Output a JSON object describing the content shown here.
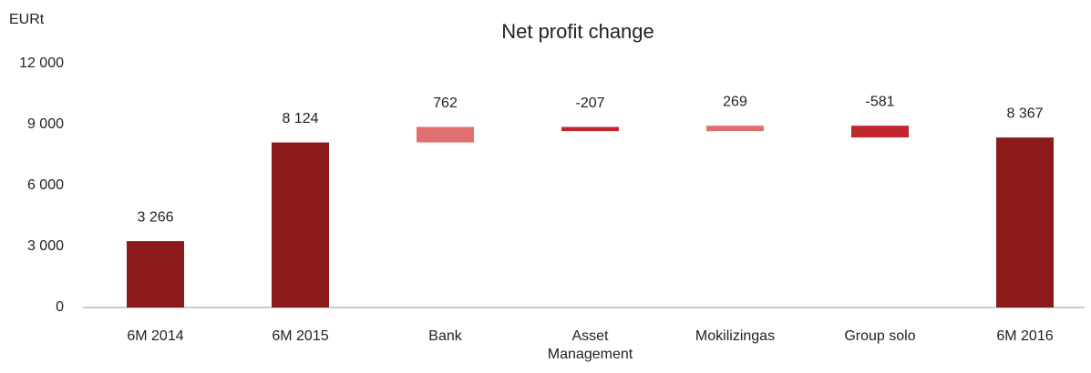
{
  "chart_data": {
    "type": "waterfall",
    "title": "Net profit change",
    "y_label": "EURt",
    "categories": [
      "6M 2014",
      "6M 2015",
      "Bank",
      "Asset Management",
      "Mokilizingas",
      "Group solo",
      "6M 2016"
    ],
    "values": [
      3266,
      8124,
      762,
      -207,
      269,
      -581,
      8367
    ],
    "value_labels": [
      "3 266",
      "8 124",
      "762",
      "-207",
      "269",
      "-581",
      "8 367"
    ],
    "is_total": [
      true,
      true,
      false,
      false,
      false,
      false,
      true
    ],
    "total_color": "#8b1a1a",
    "increase_color": "#e07070",
    "decrease_color": "#c0282d",
    "ylim": [
      0,
      12000
    ],
    "yticks": [
      0,
      {
        "value": 3000,
        "label": "3 000"
      },
      {
        "value": 6000,
        "label": "6 000"
      },
      {
        "value": 9000,
        "label": "9 000"
      },
      {
        "value": 12000,
        "label": "12 000"
      }
    ],
    "grid": false
  }
}
